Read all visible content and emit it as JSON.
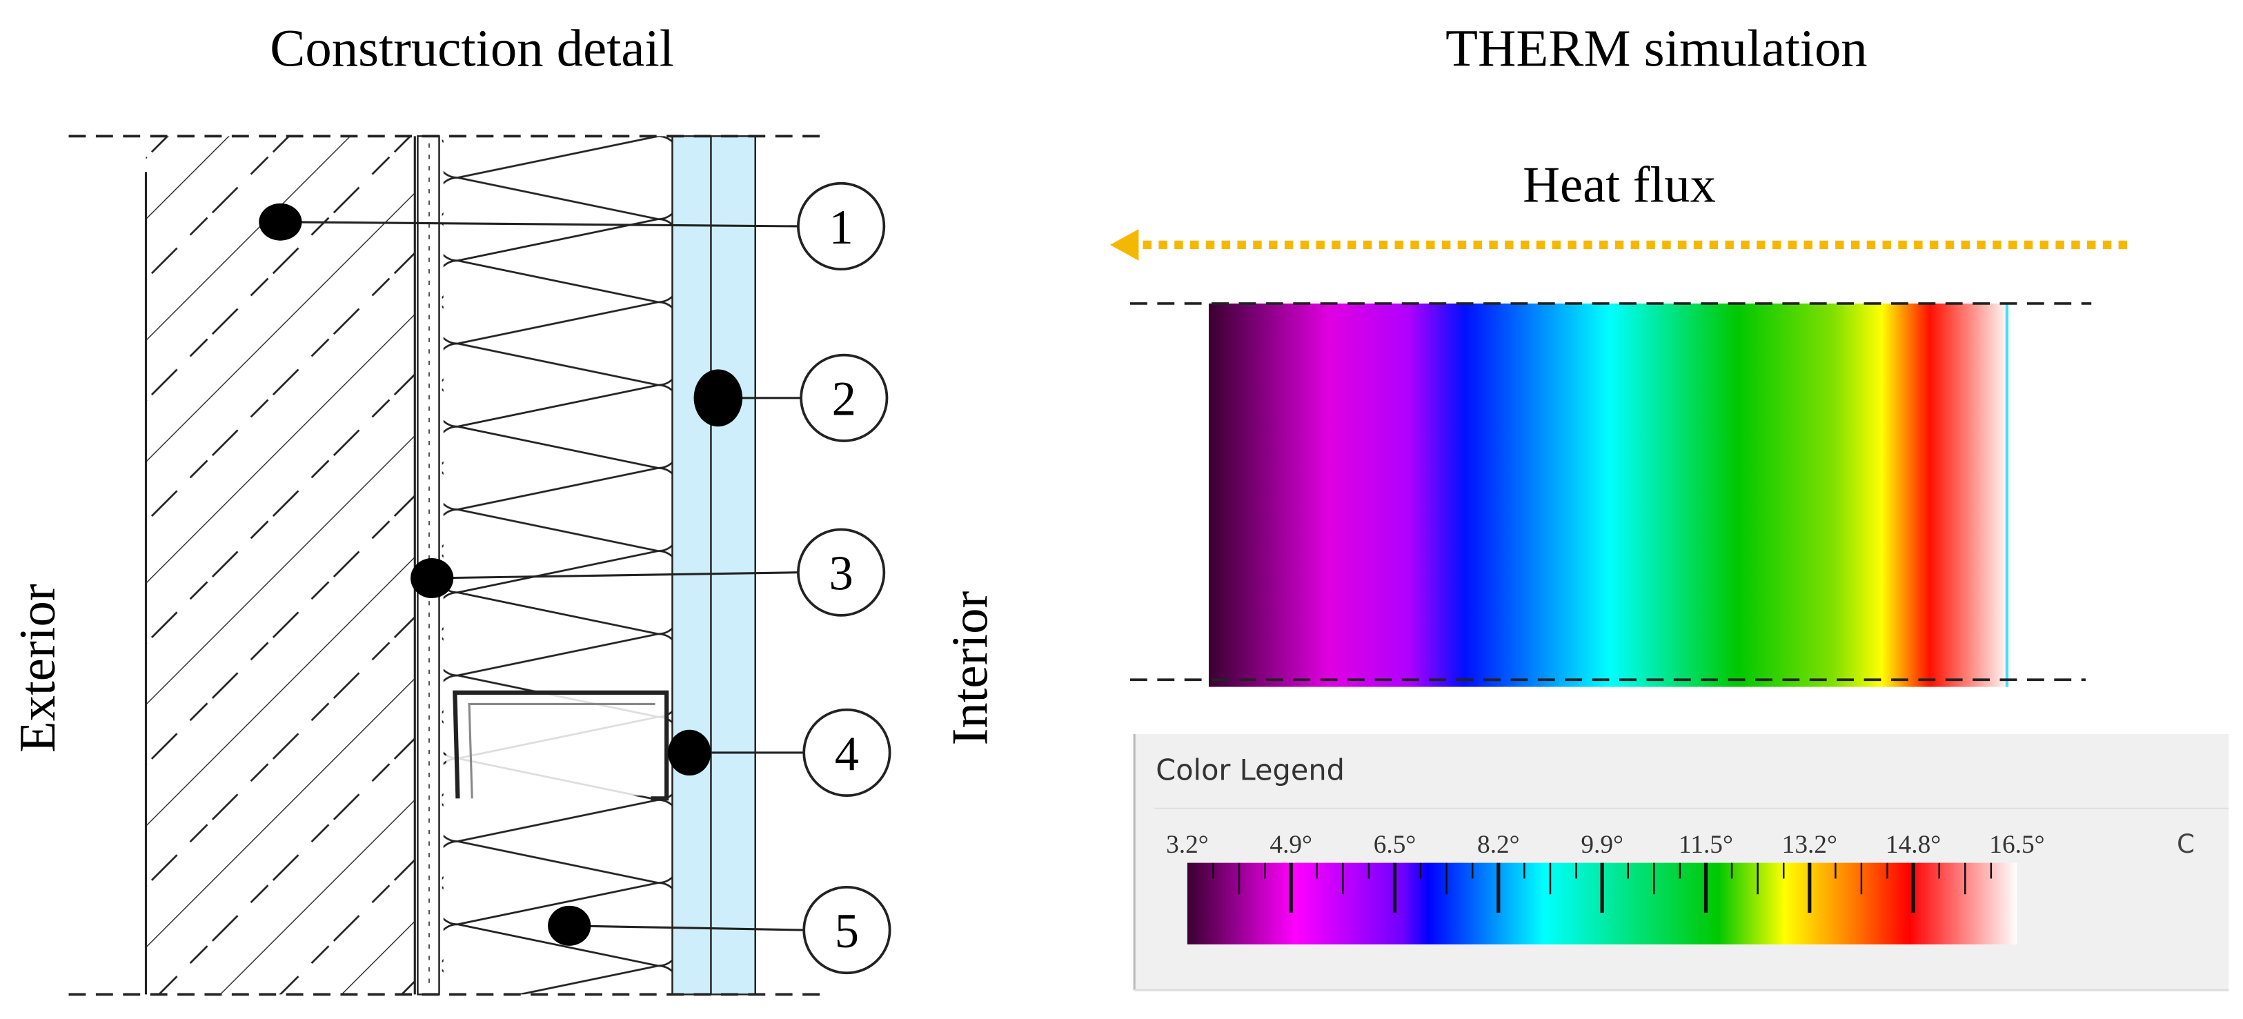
{
  "left_panel": {
    "title": "Construction detail",
    "exterior_label": "Exterior",
    "interior_label": "Interior",
    "callouts": [
      "1",
      "2",
      "3",
      "4",
      "5"
    ]
  },
  "right_panel": {
    "title": "THERM simulation",
    "heat_flux_label": "Heat flux",
    "legend": {
      "title": "Color Legend",
      "unit": "C",
      "ticks": [
        "3.2°",
        "4.9°",
        "6.5°",
        "8.2°",
        "9.9°",
        "11.5°",
        "13.2°",
        "14.8°",
        "16.5°"
      ]
    }
  }
}
